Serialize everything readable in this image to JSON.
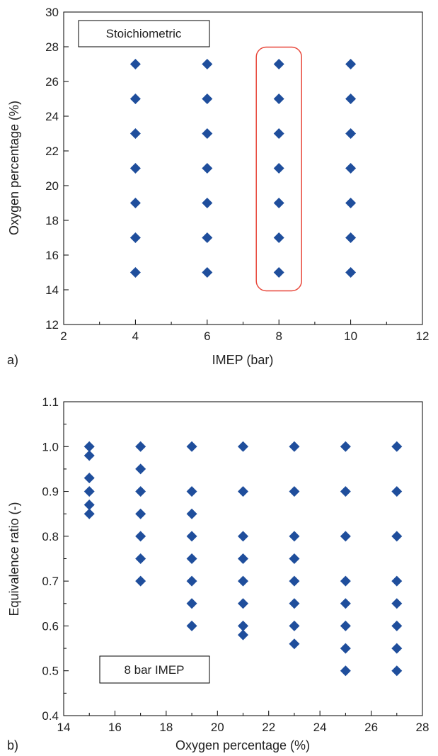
{
  "chart_data": [
    {
      "panel_label": "a)",
      "type": "scatter",
      "xlabel": "IMEP (bar)",
      "ylabel": "Oxygen percentage (%)",
      "xlim": [
        2,
        12
      ],
      "ylim": [
        12,
        30
      ],
      "xticks": [
        2,
        4,
        6,
        8,
        10,
        12
      ],
      "yticks": [
        12,
        14,
        16,
        18,
        20,
        22,
        24,
        26,
        28,
        30
      ],
      "x_minor_ticks": [
        3,
        5,
        7,
        9,
        11
      ],
      "annotation": "Stoichiometric",
      "highlight": {
        "x": 8,
        "y_range": [
          15,
          27
        ],
        "color": "#e8473a"
      },
      "marker_color": "#1f4e9c",
      "grid": false,
      "points": [
        {
          "x": 4,
          "y": 15
        },
        {
          "x": 4,
          "y": 17
        },
        {
          "x": 4,
          "y": 19
        },
        {
          "x": 4,
          "y": 21
        },
        {
          "x": 4,
          "y": 23
        },
        {
          "x": 4,
          "y": 25
        },
        {
          "x": 4,
          "y": 27
        },
        {
          "x": 6,
          "y": 15
        },
        {
          "x": 6,
          "y": 17
        },
        {
          "x": 6,
          "y": 19
        },
        {
          "x": 6,
          "y": 21
        },
        {
          "x": 6,
          "y": 23
        },
        {
          "x": 6,
          "y": 25
        },
        {
          "x": 6,
          "y": 27
        },
        {
          "x": 8,
          "y": 15
        },
        {
          "x": 8,
          "y": 17
        },
        {
          "x": 8,
          "y": 19
        },
        {
          "x": 8,
          "y": 21
        },
        {
          "x": 8,
          "y": 23
        },
        {
          "x": 8,
          "y": 25
        },
        {
          "x": 8,
          "y": 27
        },
        {
          "x": 10,
          "y": 15
        },
        {
          "x": 10,
          "y": 17
        },
        {
          "x": 10,
          "y": 19
        },
        {
          "x": 10,
          "y": 21
        },
        {
          "x": 10,
          "y": 23
        },
        {
          "x": 10,
          "y": 25
        },
        {
          "x": 10,
          "y": 27
        }
      ]
    },
    {
      "panel_label": "b)",
      "type": "scatter",
      "xlabel": "Oxygen percentage (%)",
      "ylabel": "Equivalence ratio (-)",
      "xlim": [
        14,
        28
      ],
      "ylim": [
        0.4,
        1.1
      ],
      "xticks": [
        14,
        16,
        18,
        20,
        22,
        24,
        26,
        28
      ],
      "yticks": [
        0.4,
        0.5,
        0.6,
        0.7,
        0.8,
        0.9,
        1.0,
        1.1
      ],
      "ytick_labels": [
        "0.4",
        "0.5",
        "0.6",
        "0.7",
        "0.8",
        "0.9",
        "1.0",
        "1.1"
      ],
      "x_minor_ticks": [
        15,
        17,
        19,
        21,
        23,
        25,
        27
      ],
      "y_minor_ticks": [
        0.45,
        0.55,
        0.65,
        0.75,
        0.85,
        0.95,
        1.05
      ],
      "annotation": "8 bar IMEP",
      "marker_color": "#1f4e9c",
      "grid": false,
      "points": [
        {
          "x": 15,
          "y": 1.0
        },
        {
          "x": 15,
          "y": 0.98
        },
        {
          "x": 15,
          "y": 0.93
        },
        {
          "x": 15,
          "y": 0.9
        },
        {
          "x": 15,
          "y": 0.87
        },
        {
          "x": 15,
          "y": 0.85
        },
        {
          "x": 17,
          "y": 1.0
        },
        {
          "x": 17,
          "y": 0.95
        },
        {
          "x": 17,
          "y": 0.9
        },
        {
          "x": 17,
          "y": 0.85
        },
        {
          "x": 17,
          "y": 0.8
        },
        {
          "x": 17,
          "y": 0.75
        },
        {
          "x": 17,
          "y": 0.7
        },
        {
          "x": 19,
          "y": 1.0
        },
        {
          "x": 19,
          "y": 0.9
        },
        {
          "x": 19,
          "y": 0.85
        },
        {
          "x": 19,
          "y": 0.8
        },
        {
          "x": 19,
          "y": 0.75
        },
        {
          "x": 19,
          "y": 0.7
        },
        {
          "x": 19,
          "y": 0.65
        },
        {
          "x": 19,
          "y": 0.6
        },
        {
          "x": 21,
          "y": 1.0
        },
        {
          "x": 21,
          "y": 0.9
        },
        {
          "x": 21,
          "y": 0.8
        },
        {
          "x": 21,
          "y": 0.75
        },
        {
          "x": 21,
          "y": 0.7
        },
        {
          "x": 21,
          "y": 0.65
        },
        {
          "x": 21,
          "y": 0.6
        },
        {
          "x": 21,
          "y": 0.58
        },
        {
          "x": 23,
          "y": 1.0
        },
        {
          "x": 23,
          "y": 0.9
        },
        {
          "x": 23,
          "y": 0.8
        },
        {
          "x": 23,
          "y": 0.75
        },
        {
          "x": 23,
          "y": 0.7
        },
        {
          "x": 23,
          "y": 0.65
        },
        {
          "x": 23,
          "y": 0.6
        },
        {
          "x": 23,
          "y": 0.56
        },
        {
          "x": 25,
          "y": 1.0
        },
        {
          "x": 25,
          "y": 0.9
        },
        {
          "x": 25,
          "y": 0.8
        },
        {
          "x": 25,
          "y": 0.7
        },
        {
          "x": 25,
          "y": 0.65
        },
        {
          "x": 25,
          "y": 0.6
        },
        {
          "x": 25,
          "y": 0.55
        },
        {
          "x": 25,
          "y": 0.5
        },
        {
          "x": 27,
          "y": 1.0
        },
        {
          "x": 27,
          "y": 0.9
        },
        {
          "x": 27,
          "y": 0.8
        },
        {
          "x": 27,
          "y": 0.7
        },
        {
          "x": 27,
          "y": 0.65
        },
        {
          "x": 27,
          "y": 0.6
        },
        {
          "x": 27,
          "y": 0.55
        },
        {
          "x": 27,
          "y": 0.5
        }
      ]
    }
  ]
}
